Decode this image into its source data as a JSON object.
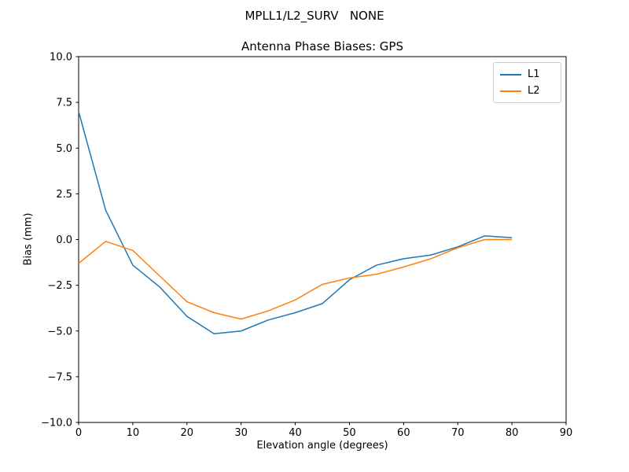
{
  "chart_data": {
    "type": "line",
    "suptitle": "MPLL1/L2_SURV   NONE",
    "title": "Antenna Phase Biases: GPS",
    "xlabel": "Elevation angle (degrees)",
    "ylabel": "Bias (mm)",
    "xlim": [
      0,
      90
    ],
    "ylim": [
      -10,
      10
    ],
    "grid": false,
    "xticks": {
      "values": [
        0,
        10,
        20,
        30,
        40,
        50,
        60,
        70,
        80,
        90
      ],
      "labels": [
        "0",
        "10",
        "20",
        "30",
        "40",
        "50",
        "60",
        "70",
        "80",
        "90"
      ]
    },
    "yticks": {
      "values": [
        10,
        7.5,
        5,
        2.5,
        0,
        -2.5,
        -5,
        -7.5,
        -10
      ],
      "labels": [
        "10.0",
        "7.5",
        "5.0",
        "2.5",
        "0.0",
        "−2.5",
        "−5.0",
        "−7.5",
        "−10.0"
      ]
    },
    "x": [
      0,
      5,
      10,
      15,
      20,
      25,
      30,
      35,
      40,
      45,
      50,
      55,
      60,
      65,
      70,
      75,
      80
    ],
    "series": [
      {
        "name": "L1",
        "color": "#1f77b4",
        "values": [
          7.0,
          1.6,
          -1.4,
          -2.6,
          -4.2,
          -5.15,
          -5.0,
          -4.4,
          -4.0,
          -3.5,
          -2.2,
          -1.4,
          -1.05,
          -0.85,
          -0.4,
          0.2,
          0.1
        ]
      },
      {
        "name": "L2",
        "color": "#ff7f0e",
        "values": [
          -1.3,
          -0.1,
          -0.6,
          -2.0,
          -3.4,
          -4.0,
          -4.35,
          -3.9,
          -3.3,
          -2.45,
          -2.1,
          -1.9,
          -1.5,
          -1.05,
          -0.45,
          0.0,
          0.0
        ]
      }
    ],
    "legend": {
      "position": "upper right",
      "items": [
        "L1",
        "L2"
      ]
    }
  }
}
